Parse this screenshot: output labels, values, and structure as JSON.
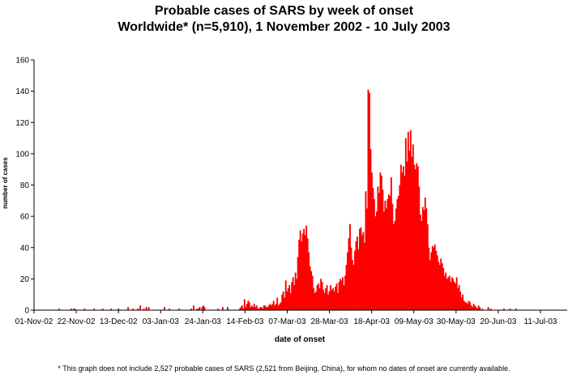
{
  "chart_data": {
    "type": "bar",
    "title": "Probable cases of SARS by week of onset",
    "subtitle": "Worldwide* (n=5,910), 1 November 2002 - 10 July 2003",
    "xlabel": "date of onset",
    "ylabel": "number of cases",
    "ylim": [
      0,
      160
    ],
    "yticks": [
      0,
      20,
      40,
      60,
      80,
      100,
      120,
      140,
      160
    ],
    "xticks": [
      "01-Nov-02",
      "22-Nov-02",
      "13-Dec-02",
      "03-Jan-03",
      "24-Jan-03",
      "14-Feb-03",
      "07-Mar-03",
      "28-Mar-03",
      "18-Apr-03",
      "09-May-03",
      "30-May-03",
      "20-Jun-03",
      "11-Jul-03"
    ],
    "color": "#ff0000",
    "grid": false,
    "legend": "none",
    "start_date": "01-Nov-02",
    "values": [
      0,
      0,
      0,
      0,
      0,
      0,
      0,
      0,
      0,
      0,
      0,
      0,
      0,
      0,
      0,
      0,
      0,
      0,
      0,
      0,
      1,
      0,
      0,
      0,
      0,
      0,
      0,
      0,
      0,
      0,
      1,
      0,
      1,
      1,
      0,
      0,
      0,
      0,
      0,
      0,
      0,
      1,
      0,
      0,
      0,
      0,
      0,
      0,
      0,
      1,
      0,
      0,
      0,
      0,
      0,
      0,
      1,
      0,
      0,
      0,
      0,
      0,
      0,
      1,
      0,
      0,
      0,
      0,
      0,
      1,
      0,
      0,
      0,
      0,
      0,
      0,
      0,
      2,
      0,
      0,
      0,
      1,
      0,
      0,
      0,
      1,
      0,
      3,
      0,
      0,
      1,
      0,
      2,
      0,
      2,
      0,
      0,
      0,
      0,
      0,
      0,
      0,
      0,
      0,
      0,
      0,
      0,
      2,
      0,
      0,
      0,
      1,
      0,
      0,
      0,
      0,
      0,
      0,
      0,
      1,
      0,
      0,
      0,
      0,
      0,
      0,
      0,
      0,
      0,
      1,
      0,
      3,
      0,
      0,
      1,
      1,
      2,
      0,
      2,
      3,
      2,
      0,
      0,
      0,
      0,
      0,
      0,
      0,
      0,
      0,
      0,
      1,
      0,
      0,
      0,
      2,
      0,
      0,
      0,
      2,
      0,
      0,
      0,
      0,
      0,
      0,
      0,
      0,
      0,
      1,
      2,
      3,
      1,
      7,
      2,
      4,
      6,
      5,
      2,
      3,
      2,
      4,
      2,
      3,
      1,
      1,
      2,
      2,
      1,
      3,
      3,
      2,
      2,
      3,
      4,
      3,
      4,
      6,
      3,
      4,
      8,
      3,
      4,
      5,
      10,
      12,
      8,
      19,
      12,
      14,
      16,
      11,
      18,
      21,
      16,
      24,
      20,
      34,
      45,
      51,
      44,
      49,
      52,
      48,
      54,
      46,
      37,
      28,
      25,
      22,
      14,
      11,
      12,
      16,
      17,
      14,
      20,
      18,
      13,
      11,
      14,
      16,
      10,
      12,
      16,
      13,
      14,
      12,
      15,
      17,
      11,
      18,
      20,
      19,
      21,
      16,
      22,
      29,
      37,
      46,
      55,
      40,
      32,
      29,
      38,
      44,
      47,
      39,
      52,
      53,
      48,
      50,
      43,
      76,
      65,
      141,
      139,
      103,
      88,
      78,
      71,
      60,
      63,
      79,
      75,
      88,
      86,
      77,
      63,
      70,
      65,
      71,
      74,
      73,
      85,
      68,
      55,
      57,
      65,
      71,
      73,
      80,
      93,
      88,
      92,
      86,
      110,
      95,
      114,
      102,
      115,
      98,
      106,
      93,
      90,
      94,
      92,
      79,
      61,
      57,
      66,
      64,
      72,
      65,
      55,
      40,
      32,
      37,
      41,
      40,
      42,
      38,
      35,
      31,
      29,
      33,
      30,
      27,
      22,
      24,
      20,
      21,
      22,
      18,
      21,
      20,
      18,
      17,
      21,
      14,
      16,
      12,
      8,
      10,
      6,
      5,
      5,
      4,
      6,
      5,
      3,
      2,
      4,
      3,
      2,
      1,
      3,
      2,
      0,
      1,
      0,
      0,
      0,
      0,
      2,
      0,
      1,
      0,
      0,
      0,
      0,
      0,
      0,
      0,
      0,
      0,
      0,
      1,
      0,
      0,
      0,
      0,
      1,
      0,
      0,
      0,
      0,
      1,
      0,
      0,
      0,
      0,
      0,
      0,
      0,
      0,
      0,
      0,
      0,
      0,
      0,
      0,
      0
    ]
  },
  "footnote": "* This graph does not include 2,527 probable cases of SARS (2,521 from Beijing, China), for whom no dates of onset are currently available."
}
